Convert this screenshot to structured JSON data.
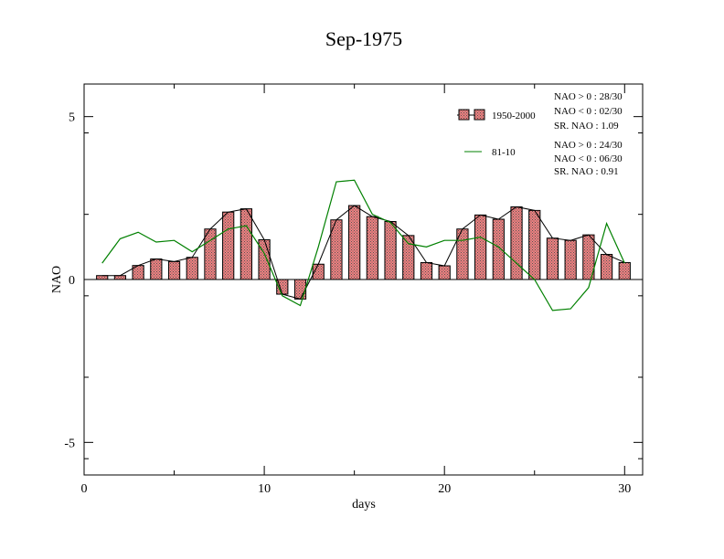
{
  "chart_data": {
    "type": "bar",
    "title": "Sep-1975",
    "xlabel": "days",
    "ylabel": "NAO",
    "xlim": [
      0,
      31
    ],
    "ylim": [
      -6,
      6
    ],
    "xticks": [
      0,
      10,
      20,
      30
    ],
    "xtick_labels": [
      "0",
      "10",
      "20",
      "30"
    ],
    "yticks": [
      -5,
      0,
      5
    ],
    "ytick_labels": [
      "-5",
      "0",
      "5"
    ],
    "x": [
      1,
      2,
      3,
      4,
      5,
      6,
      7,
      8,
      9,
      10,
      11,
      12,
      13,
      14,
      15,
      16,
      17,
      18,
      19,
      20,
      21,
      22,
      23,
      24,
      25,
      26,
      27,
      28,
      29,
      30
    ],
    "series": [
      {
        "name": "1950-2000",
        "kind": "bar+line",
        "color": "#f08080",
        "values": [
          0.12,
          0.12,
          0.43,
          0.63,
          0.55,
          0.68,
          1.55,
          2.07,
          2.17,
          1.22,
          -0.45,
          -0.6,
          0.47,
          1.83,
          2.27,
          1.93,
          1.78,
          1.35,
          0.52,
          0.42,
          1.55,
          1.98,
          1.85,
          2.23,
          2.12,
          1.27,
          1.2,
          1.37,
          0.77,
          0.52
        ]
      },
      {
        "name": "81-10",
        "kind": "line",
        "color": "#008000",
        "values": [
          0.5,
          1.25,
          1.45,
          1.15,
          1.2,
          0.85,
          1.2,
          1.55,
          1.65,
          0.8,
          -0.5,
          -0.8,
          1.0,
          3.0,
          3.05,
          2.0,
          1.75,
          1.1,
          1.0,
          1.2,
          1.2,
          1.3,
          1.0,
          0.5,
          0.0,
          -0.95,
          -0.9,
          -0.25,
          1.72,
          0.5
        ]
      }
    ],
    "legend": {
      "placement": "top-right",
      "stats_1": [
        "NAO > 0 : 28/30",
        "NAO < 0 : 02/30",
        "SR. NAO :  1.09"
      ],
      "stats_2": [
        "NAO > 0 : 24/30",
        "NAO < 0 : 06/30",
        "SR. NAO :  0.91"
      ]
    },
    "grid": false
  }
}
